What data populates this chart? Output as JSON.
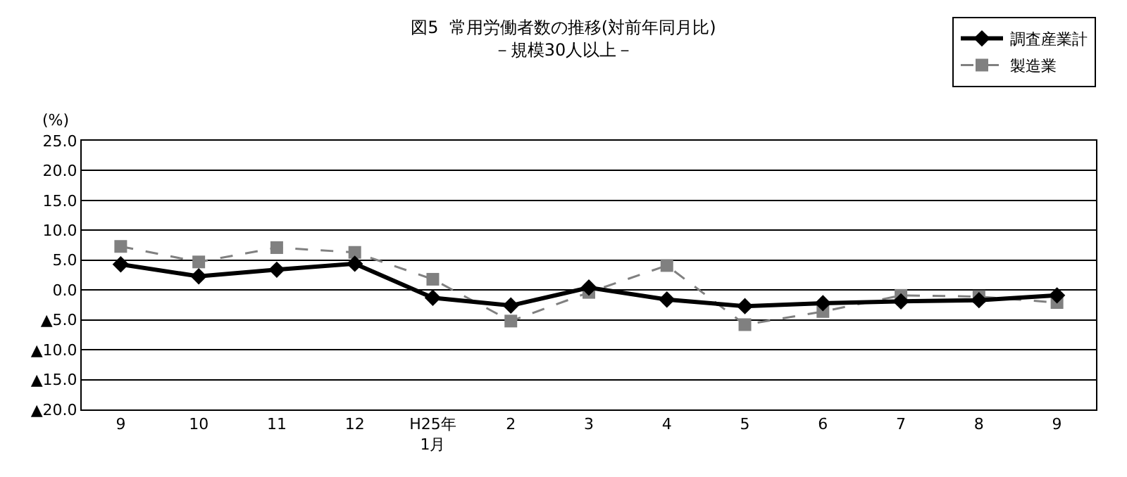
{
  "chart_data": {
    "type": "line",
    "title": "図5  常用労働者数の推移(対前年同月比)\n－規模30人以上－",
    "ylabel": "(%)",
    "categories": [
      "9",
      "10",
      "11",
      "12",
      "H25年\n1月",
      "2",
      "3",
      "4",
      "5",
      "6",
      "7",
      "8",
      "9"
    ],
    "series": [
      {
        "name": "調査産業計",
        "color": "#000000",
        "marker": "diamond",
        "line_style": "solid",
        "values": [
          4.3,
          2.3,
          3.4,
          4.4,
          -1.3,
          -2.6,
          0.4,
          -1.6,
          -2.7,
          -2.2,
          -1.9,
          -1.7,
          -0.9
        ]
      },
      {
        "name": "製造業",
        "color": "#808080",
        "marker": "square",
        "line_style": "dashed",
        "values": [
          7.3,
          4.7,
          7.1,
          6.3,
          1.8,
          -5.2,
          -0.4,
          4.1,
          -5.8,
          -3.6,
          -0.9,
          -1.1,
          -2.1
        ]
      }
    ],
    "ylim": [
      -20,
      25
    ],
    "yticks": [
      {
        "value": 25,
        "label": "25.0"
      },
      {
        "value": 20,
        "label": "20.0"
      },
      {
        "value": 15,
        "label": "15.0"
      },
      {
        "value": 10,
        "label": "10.0"
      },
      {
        "value": 5,
        "label": "5.0"
      },
      {
        "value": 0,
        "label": "0.0"
      },
      {
        "value": -5,
        "label": "▲5.0"
      },
      {
        "value": -10,
        "label": "▲10.0"
      },
      {
        "value": -15,
        "label": "▲15.0"
      },
      {
        "value": -20,
        "label": "▲20.0"
      }
    ],
    "grid": "y",
    "legend": "top right"
  }
}
